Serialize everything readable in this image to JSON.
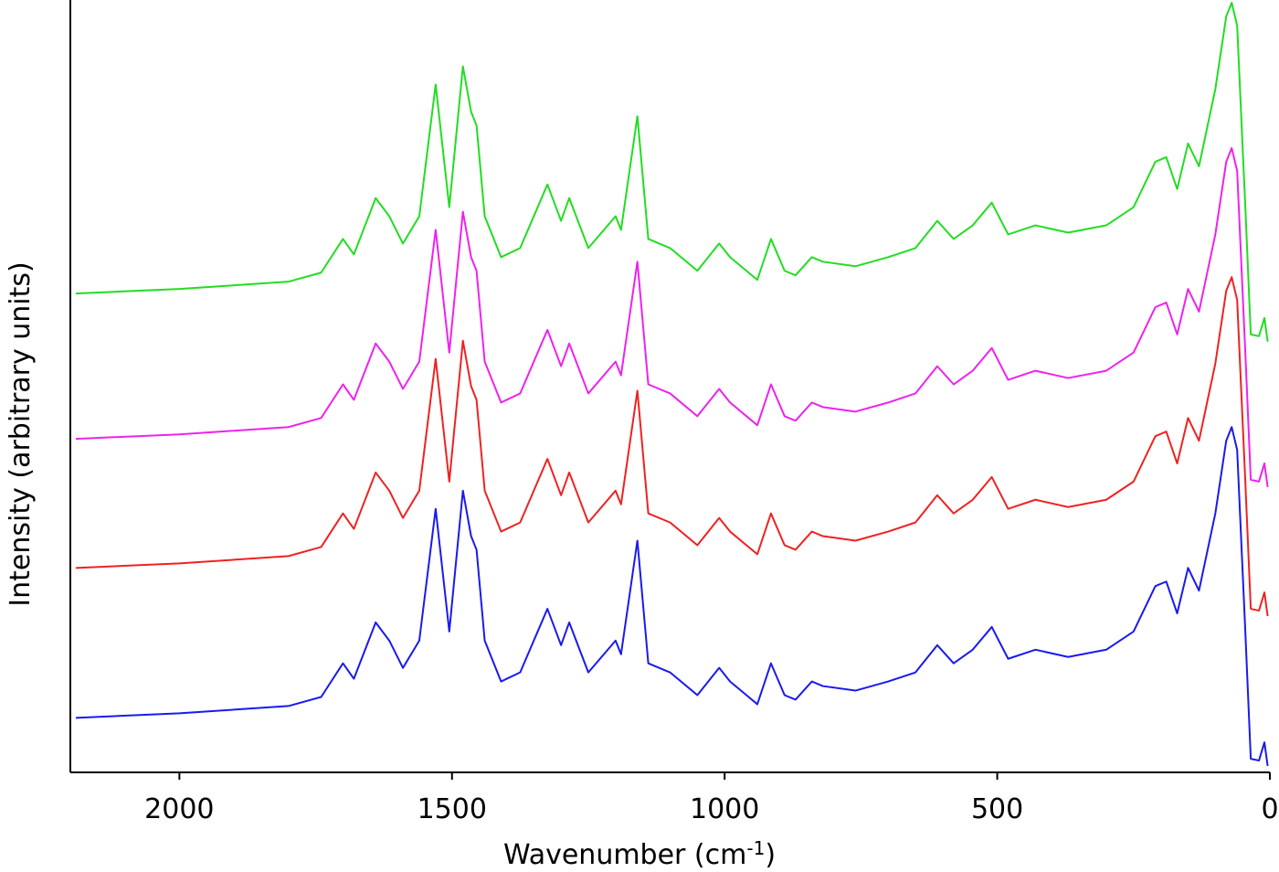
{
  "chart_data": {
    "type": "line",
    "xlabel": "Wavenumber (cm",
    "xlabel_sup": "-1",
    "xlabel_end": ")",
    "ylabel": "Intensity (arbitrary units)",
    "x": [
      2190,
      2000,
      1800,
      1740,
      1700,
      1680,
      1640,
      1615,
      1590,
      1560,
      1530,
      1505,
      1480,
      1465,
      1455,
      1440,
      1410,
      1375,
      1325,
      1300,
      1285,
      1250,
      1200,
      1190,
      1160,
      1140,
      1100,
      1050,
      1010,
      990,
      960,
      940,
      915,
      890,
      870,
      840,
      820,
      760,
      700,
      650,
      610,
      580,
      545,
      510,
      480,
      430,
      370,
      300,
      250,
      210,
      190,
      170,
      150,
      130,
      100,
      80,
      70,
      60,
      45,
      35,
      20,
      10,
      4
    ],
    "xlim": [
      2200,
      0
    ],
    "xticks": [
      2000,
      1500,
      1000,
      500,
      0
    ],
    "ylim": [
      0,
      850
    ],
    "series": [
      {
        "color": "#22dd22",
        "values": [
          527,
          532,
          540,
          550,
          587,
          570,
          632,
          612,
          582,
          612,
          757,
          622,
          777,
          727,
          712,
          612,
          567,
          577,
          647,
          607,
          632,
          577,
          612,
          597,
          722,
          587,
          577,
          552,
          582,
          567,
          552,
          542,
          587,
          552,
          547,
          567,
          562,
          557,
          567,
          577,
          607,
          587,
          602,
          627,
          592,
          602,
          594,
          602,
          622,
          672,
          677,
          642,
          692,
          667,
          752,
          832,
          847,
          822,
          622,
          482,
          480,
          500,
          474
        ]
      },
      {
        "color": "#ee22ee",
        "values": [
          367,
          372,
          380,
          390,
          427,
          410,
          472,
          452,
          422,
          452,
          597,
          462,
          617,
          567,
          552,
          452,
          407,
          417,
          487,
          447,
          472,
          417,
          452,
          437,
          562,
          427,
          417,
          392,
          422,
          407,
          392,
          382,
          427,
          392,
          387,
          407,
          402,
          397,
          407,
          417,
          447,
          427,
          442,
          467,
          432,
          442,
          434,
          442,
          462,
          512,
          517,
          482,
          532,
          507,
          592,
          672,
          687,
          662,
          462,
          322,
          320,
          340,
          314
        ]
      },
      {
        "color": "#ee2222",
        "values": [
          225,
          230,
          238,
          248,
          285,
          268,
          330,
          310,
          280,
          310,
          455,
          320,
          475,
          425,
          410,
          310,
          265,
          275,
          345,
          305,
          330,
          275,
          310,
          295,
          420,
          285,
          275,
          250,
          280,
          265,
          250,
          240,
          285,
          250,
          245,
          265,
          260,
          255,
          265,
          275,
          305,
          285,
          300,
          325,
          290,
          300,
          292,
          300,
          320,
          370,
          375,
          340,
          390,
          365,
          450,
          530,
          545,
          520,
          320,
          180,
          178,
          198,
          172
        ]
      },
      {
        "color": "#1a1aee",
        "values": [
          60,
          65,
          73,
          83,
          120,
          103,
          165,
          145,
          115,
          145,
          290,
          155,
          310,
          260,
          245,
          145,
          100,
          110,
          180,
          140,
          165,
          110,
          145,
          130,
          255,
          120,
          110,
          85,
          115,
          100,
          85,
          75,
          120,
          85,
          80,
          100,
          95,
          90,
          100,
          110,
          140,
          120,
          135,
          160,
          125,
          135,
          127,
          135,
          155,
          205,
          210,
          175,
          225,
          200,
          285,
          365,
          380,
          355,
          155,
          15,
          13,
          33,
          7
        ]
      }
    ]
  }
}
